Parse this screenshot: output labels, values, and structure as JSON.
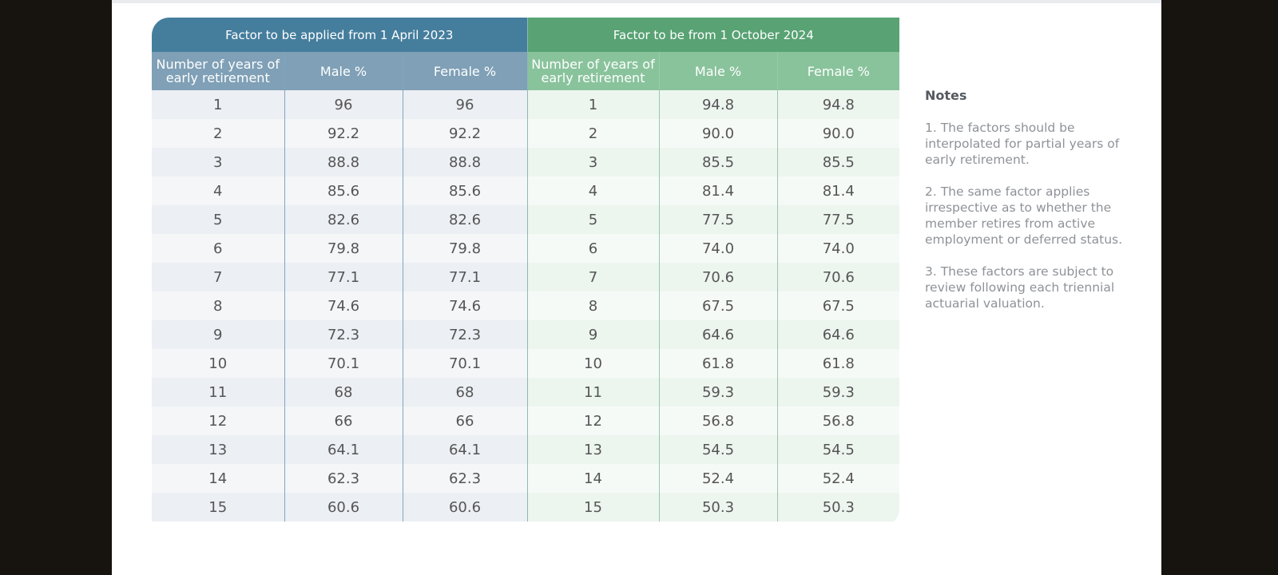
{
  "table": {
    "left_group_header": "Factor to be applied from 1 April 2023",
    "right_group_header": "Factor to be from 1 October 2024",
    "left_columns": [
      "Number of years of early retirement",
      "Male %",
      "Female %"
    ],
    "right_columns": [
      "Number of years of early retirement",
      "Male %",
      "Female %"
    ],
    "rows": [
      {
        "years_a": "1",
        "male_a": "96",
        "female_a": "96",
        "years_b": "1",
        "male_b": "94.8",
        "female_b": "94.8"
      },
      {
        "years_a": "2",
        "male_a": "92.2",
        "female_a": "92.2",
        "years_b": "2",
        "male_b": "90.0",
        "female_b": "90.0"
      },
      {
        "years_a": "3",
        "male_a": "88.8",
        "female_a": "88.8",
        "years_b": "3",
        "male_b": "85.5",
        "female_b": "85.5"
      },
      {
        "years_a": "4",
        "male_a": "85.6",
        "female_a": "85.6",
        "years_b": "4",
        "male_b": "81.4",
        "female_b": "81.4"
      },
      {
        "years_a": "5",
        "male_a": "82.6",
        "female_a": "82.6",
        "years_b": "5",
        "male_b": "77.5",
        "female_b": "77.5"
      },
      {
        "years_a": "6",
        "male_a": "79.8",
        "female_a": "79.8",
        "years_b": "6",
        "male_b": "74.0",
        "female_b": "74.0"
      },
      {
        "years_a": "7",
        "male_a": "77.1",
        "female_a": "77.1",
        "years_b": "7",
        "male_b": "70.6",
        "female_b": "70.6"
      },
      {
        "years_a": "8",
        "male_a": "74.6",
        "female_a": "74.6",
        "years_b": "8",
        "male_b": "67.5",
        "female_b": "67.5"
      },
      {
        "years_a": "9",
        "male_a": "72.3",
        "female_a": "72.3",
        "years_b": "9",
        "male_b": "64.6",
        "female_b": "64.6"
      },
      {
        "years_a": "10",
        "male_a": "70.1",
        "female_a": "70.1",
        "years_b": "10",
        "male_b": "61.8",
        "female_b": "61.8"
      },
      {
        "years_a": "11",
        "male_a": "68",
        "female_a": "68",
        "years_b": "11",
        "male_b": "59.3",
        "female_b": "59.3"
      },
      {
        "years_a": "12",
        "male_a": "66",
        "female_a": "66",
        "years_b": "12",
        "male_b": "56.8",
        "female_b": "56.8"
      },
      {
        "years_a": "13",
        "male_a": "64.1",
        "female_a": "64.1",
        "years_b": "13",
        "male_b": "54.5",
        "female_b": "54.5"
      },
      {
        "years_a": "14",
        "male_a": "62.3",
        "female_a": "62.3",
        "years_b": "14",
        "male_b": "52.4",
        "female_b": "52.4"
      },
      {
        "years_a": "15",
        "male_a": "60.6",
        "female_a": "60.6",
        "years_b": "15",
        "male_b": "50.3",
        "female_b": "50.3"
      }
    ]
  },
  "notes": {
    "title": "Notes",
    "items": [
      "1. The factors should be interpolated for partial years of early retirement.",
      "2.  The same factor applies irrespective as to whether the member retires from active employment or deferred status.",
      "3.  These factors are subject to review following each triennial actuarial valuation."
    ]
  },
  "colors": {
    "header_blue": "#457e9d",
    "header_green": "#58a273",
    "subheader_blue": "#7fa0b6",
    "subheader_green": "#89c39c",
    "outer_background": "#17130f"
  }
}
